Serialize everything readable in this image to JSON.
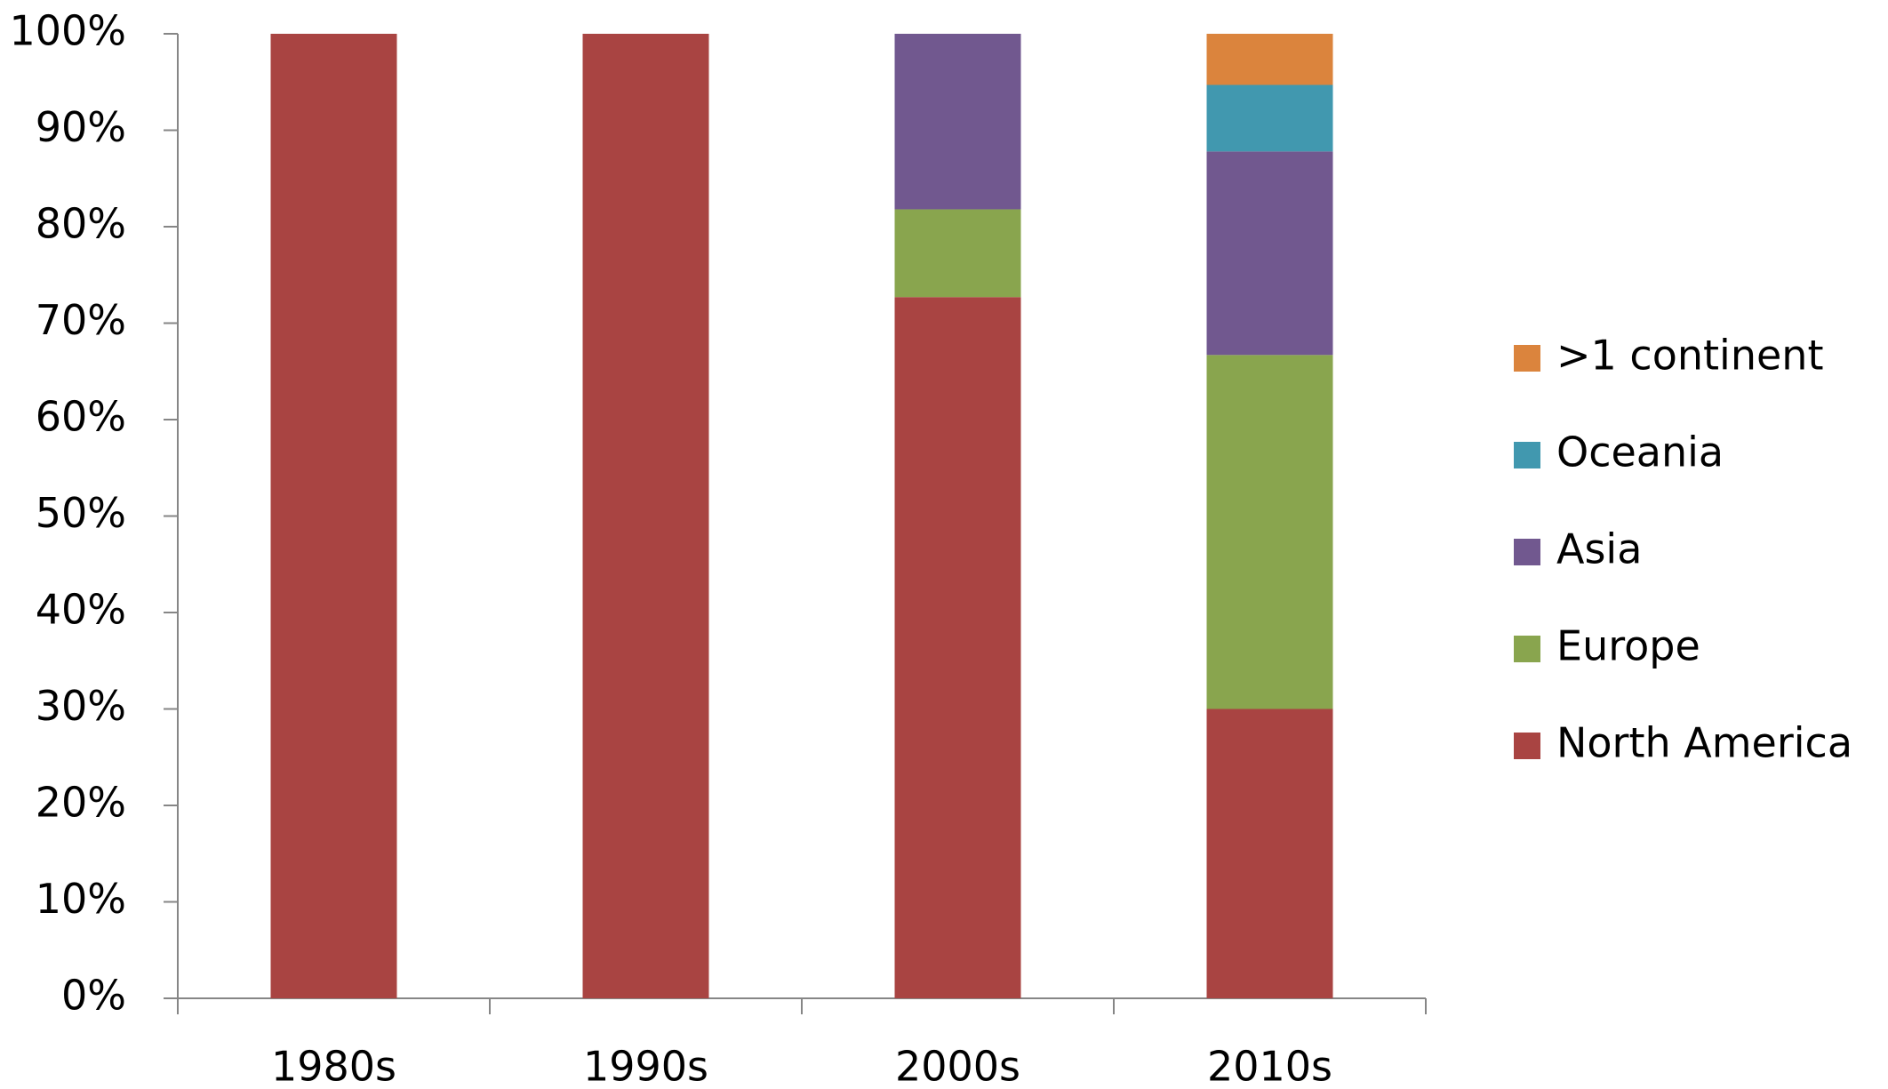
{
  "chart_data": {
    "type": "stacked-bar",
    "categories": [
      "1980s",
      "1990s",
      "2000s",
      "2010s"
    ],
    "series": [
      {
        "name": "North America",
        "color": "#a94442",
        "values": [
          100,
          100,
          72.7,
          30
        ]
      },
      {
        "name": "Europe",
        "color": "#89a54e",
        "values": [
          0,
          0,
          9.1,
          36.7
        ]
      },
      {
        "name": "Asia",
        "color": "#71588f",
        "values": [
          0,
          0,
          18.2,
          21.1
        ]
      },
      {
        "name": "Oceania",
        "color": "#4198af",
        "values": [
          0,
          0,
          0,
          6.9
        ]
      },
      {
        "name": ">1 continent",
        "color": "#db843d",
        "values": [
          0,
          0,
          0,
          5.3
        ]
      }
    ],
    "ylim": [
      0,
      100
    ],
    "yticks": [
      {
        "value": 0,
        "label": "0%"
      },
      {
        "value": 10,
        "label": "10%"
      },
      {
        "value": 20,
        "label": "20%"
      },
      {
        "value": 30,
        "label": "30%"
      },
      {
        "value": 40,
        "label": "40%"
      },
      {
        "value": 50,
        "label": "50%"
      },
      {
        "value": 60,
        "label": "60%"
      },
      {
        "value": 70,
        "label": "70%"
      },
      {
        "value": 80,
        "label": "80%"
      },
      {
        "value": 90,
        "label": "90%"
      },
      {
        "value": 100,
        "label": "100%"
      }
    ],
    "grid": false,
    "legend": "right"
  }
}
